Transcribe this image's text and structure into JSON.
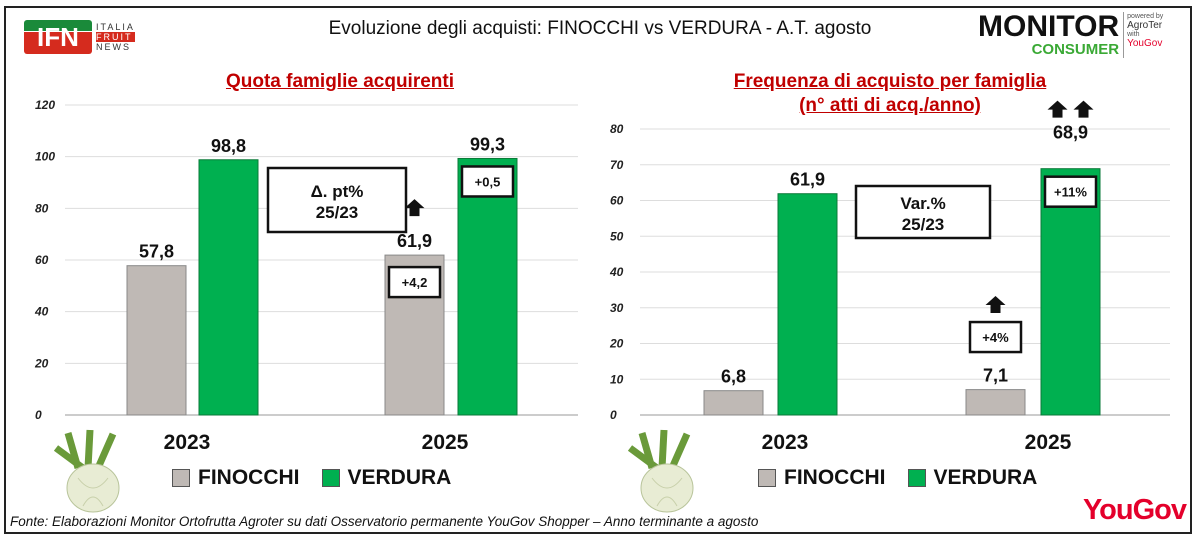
{
  "header": {
    "title": "Evoluzione degli acquisti: FINOCCHI vs VERDURA  - A.T. agosto",
    "ifn_logo": {
      "main": "IFN",
      "lines": [
        "ITALIA",
        "FRUIT",
        "NEWS"
      ]
    },
    "monitor_logo": {
      "main": "MONITOR",
      "sub": "CONSUMER",
      "powered": "powered by",
      "agroter": "AgroTer",
      "with": "with",
      "yougov": "YouGov"
    }
  },
  "legend": {
    "finocchi": "FINOCCHI",
    "verdura": "VERDURA"
  },
  "colors": {
    "finocchi": "#bfb9b5",
    "verdura": "#00b050",
    "title": "#c00000"
  },
  "footer": "Fonte: Elaborazioni Monitor Ortofrutta Agroter su dati Osservatorio permanente YouGov Shopper  – Anno terminante a agosto",
  "footer_logo": "YouGov",
  "chart_data": [
    {
      "type": "bar",
      "title": "Quota famiglie acquirenti",
      "title2": "",
      "categories": [
        "2023",
        "2025"
      ],
      "series": [
        {
          "name": "FINOCCHI",
          "values": [
            57.8,
            61.9
          ],
          "labels": [
            "57,8",
            "61,9"
          ]
        },
        {
          "name": "VERDURA",
          "values": [
            98.8,
            99.3
          ],
          "labels": [
            "98,8",
            "99,3"
          ]
        }
      ],
      "ylim": [
        0,
        120
      ],
      "yticks": [
        "0",
        "20",
        "40",
        "60",
        "80",
        "100",
        "120"
      ],
      "grid": true,
      "delta_title": [
        "Δ. pt%",
        "25/23"
      ],
      "deltas": {
        "FINOCCHI": "+4,2",
        "VERDURA": "+0,5"
      },
      "arrows": {
        "FINOCCHI": 1,
        "VERDURA": 0
      }
    },
    {
      "type": "bar",
      "title": "Frequenza di acquisto per famiglia",
      "title2": "(n° atti di acq./anno)",
      "categories": [
        "2023",
        "2025"
      ],
      "series": [
        {
          "name": "FINOCCHI",
          "values": [
            6.8,
            7.1
          ],
          "labels": [
            "6,8",
            "7,1"
          ]
        },
        {
          "name": "VERDURA",
          "values": [
            61.9,
            68.9
          ],
          "labels": [
            "61,9",
            "68,9"
          ]
        }
      ],
      "ylim": [
        0,
        80
      ],
      "yticks": [
        "0",
        "10",
        "20",
        "30",
        "40",
        "50",
        "60",
        "70",
        "80"
      ],
      "grid": true,
      "delta_title": [
        "Var.%",
        "25/23"
      ],
      "deltas": {
        "FINOCCHI": "+4%",
        "VERDURA": "+11%"
      },
      "arrows": {
        "FINOCCHI": 1,
        "VERDURA": 2
      }
    }
  ]
}
